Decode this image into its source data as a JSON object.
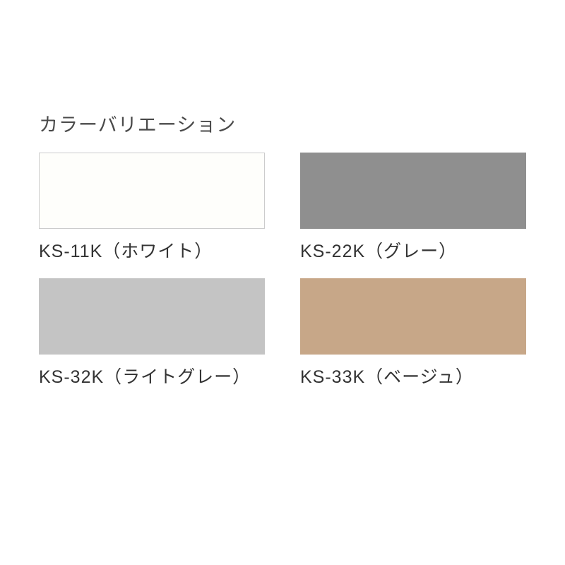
{
  "title": "カラーバリエーション",
  "title_color": "#4a4a4a",
  "title_fontsize": 27,
  "label_color": "#333333",
  "label_fontsize": 25,
  "background_color": "#ffffff",
  "swatch_width": 320,
  "swatch_height": 108,
  "grid_columns": 2,
  "swatches": [
    {
      "label": "KS-11K（ホワイト）",
      "fill": "#fefefb",
      "border": "#cccccc"
    },
    {
      "label": "KS-22K（グレー）",
      "fill": "#8f8f8f",
      "border": "#8f8f8f"
    },
    {
      "label": "KS-32K（ライトグレー）",
      "fill": "#c4c4c4",
      "border": "#c4c4c4"
    },
    {
      "label": "KS-33K（ベージュ）",
      "fill": "#c7a788",
      "border": "#c7a788"
    }
  ]
}
